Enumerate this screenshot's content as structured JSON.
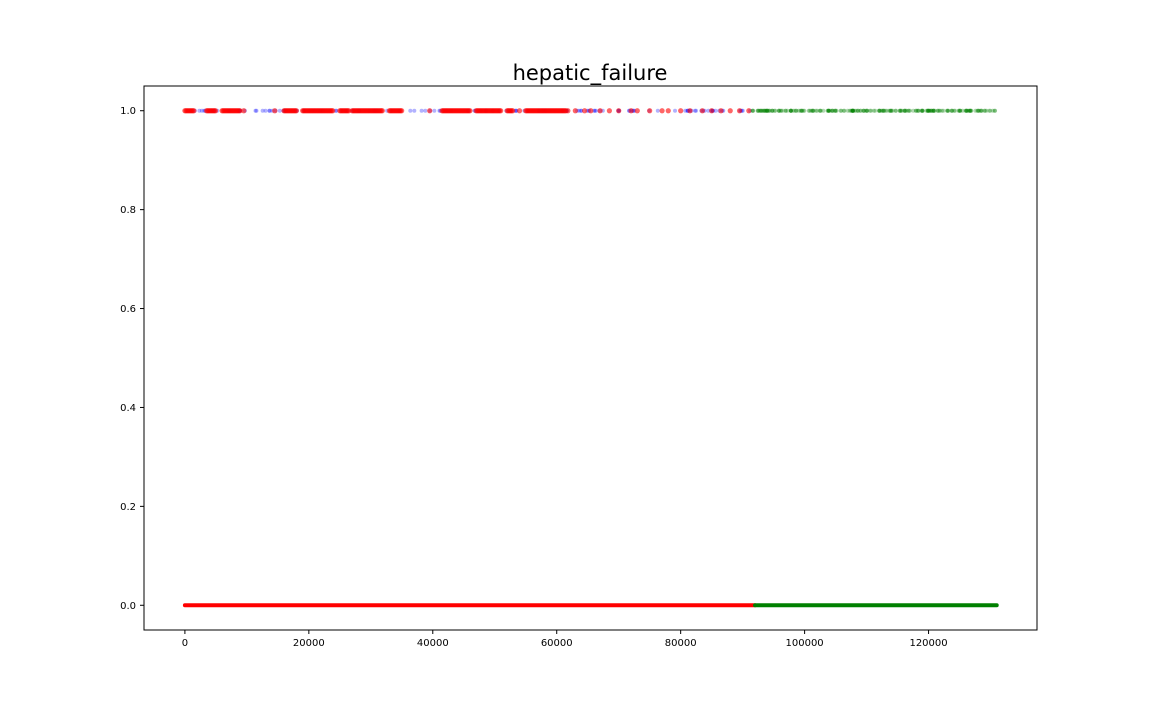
{
  "chart_data": {
    "type": "scatter",
    "title": "hepatic_failure",
    "xlabel": "",
    "ylabel": "",
    "xlim": [
      -6600,
      137500
    ],
    "ylim": [
      -0.05,
      1.05
    ],
    "x_ticks": [
      0,
      20000,
      40000,
      60000,
      80000,
      100000,
      120000
    ],
    "x_tick_labels": [
      "0",
      "20000",
      "40000",
      "60000",
      "80000",
      "100000",
      "120000"
    ],
    "y_ticks": [
      0.0,
      0.2,
      0.4,
      0.6,
      0.8,
      1.0
    ],
    "y_tick_labels": [
      "0.0",
      "0.2",
      "0.4",
      "0.6",
      "0.8",
      "1.0"
    ],
    "grid": false,
    "legend": "none",
    "series": [
      {
        "color": "#0000ff",
        "marker_alpha": 0.3,
        "y": 1.0,
        "x_range": [
          0,
          91500
        ],
        "point_count": 150
      },
      {
        "color": "#ff0000",
        "marker_alpha": 0.6,
        "y": 1.0,
        "x_dense_ranges": [
          [
            0,
            1500
          ],
          [
            3500,
            5000
          ],
          [
            6000,
            9000
          ],
          [
            16000,
            18000
          ],
          [
            19000,
            24000
          ],
          [
            25000,
            26500
          ],
          [
            27000,
            32000
          ],
          [
            33000,
            35000
          ],
          [
            41500,
            46000
          ],
          [
            47000,
            51000
          ],
          [
            52000,
            53000
          ],
          [
            55000,
            61500
          ]
        ],
        "x_points": [
          9500,
          14500,
          39500,
          54000,
          61800,
          63000,
          64500,
          65500,
          67000,
          68500,
          70000,
          72000,
          73000,
          75000,
          77000,
          78000,
          80000,
          81500,
          83500,
          85000,
          86500,
          88000,
          89500,
          91000
        ]
      },
      {
        "color": "#008000",
        "marker_alpha": 0.3,
        "y": 1.0,
        "x_range": [
          91500,
          131000
        ],
        "point_count": 220
      },
      {
        "color": "#ff0000",
        "marker_alpha": 1.0,
        "y": 0.0,
        "x_range": [
          0,
          92000
        ]
      },
      {
        "color": "#008000",
        "marker_alpha": 1.0,
        "y": 0.0,
        "x_range": [
          92000,
          131000
        ]
      }
    ]
  }
}
